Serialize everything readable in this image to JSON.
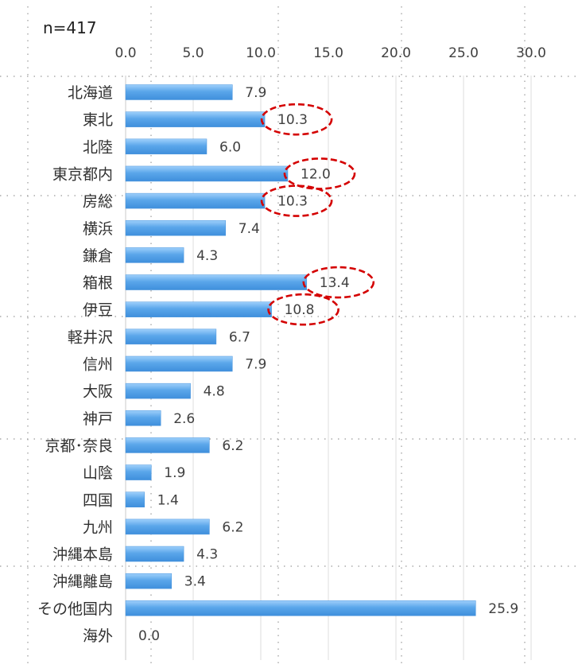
{
  "chart_data": {
    "type": "bar",
    "orientation": "horizontal",
    "title": "",
    "note": "n=417",
    "xlabel": "",
    "ylabel": "",
    "xlim": [
      0,
      30
    ],
    "xticks": [
      "0.0",
      "5.0",
      "10.0",
      "15.0",
      "20.0",
      "25.0",
      "30.0"
    ],
    "axis_position": "top",
    "grid": true,
    "categories": [
      "北海道",
      "東北",
      "北陸",
      "東京都内",
      "房総",
      "横浜",
      "鎌倉",
      "箱根",
      "伊豆",
      "軽井沢",
      "信州",
      "大阪",
      "神戸",
      "京都･奈良",
      "山陰",
      "四国",
      "九州",
      "沖縄本島",
      "沖縄離島",
      "その他国内",
      "海外"
    ],
    "values": [
      7.9,
      10.3,
      6.0,
      12.0,
      10.3,
      7.4,
      4.3,
      13.4,
      10.8,
      6.7,
      7.9,
      4.8,
      2.6,
      6.2,
      1.9,
      1.4,
      6.2,
      4.3,
      3.4,
      25.9,
      0.0
    ],
    "value_labels": [
      "7.9",
      "10.3",
      "6.0",
      "12.0",
      "10.3",
      "7.4",
      "4.3",
      "13.4",
      "10.8",
      "6.7",
      "7.9",
      "4.8",
      "2.6",
      "6.2",
      "1.9",
      "1.4",
      "6.2",
      "4.3",
      "3.4",
      "25.9",
      "0.0"
    ],
    "highlighted": [
      "東北",
      "東京都内",
      "房総",
      "箱根",
      "伊豆"
    ],
    "bar_color": "#5aa6ea",
    "highlight_color": "#d40000"
  }
}
